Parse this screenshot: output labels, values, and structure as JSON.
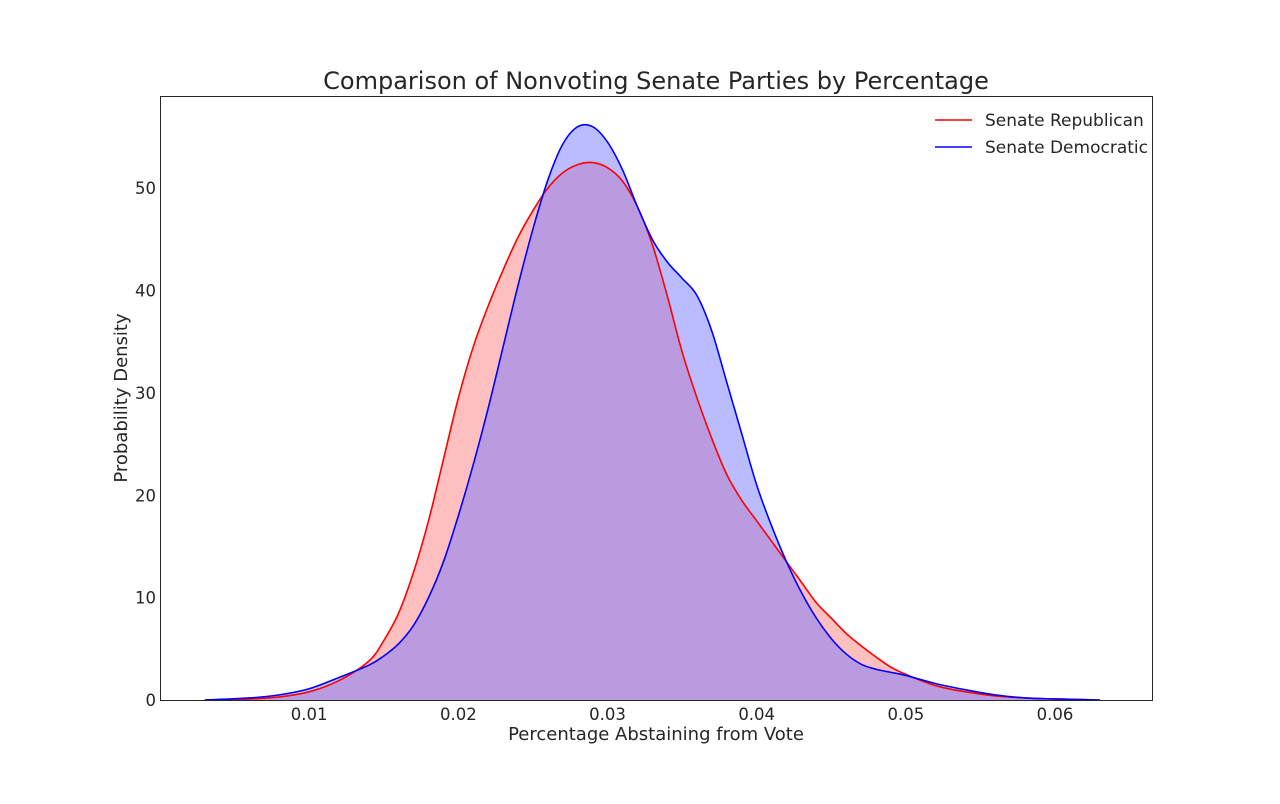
{
  "chart_data": {
    "type": "area",
    "title": "Comparison of Nonvoting Senate Parties by Percentage",
    "xlabel": "Percentage Abstaining from Vote",
    "ylabel": "Probability Density",
    "xlim": [
      0.0,
      0.0665
    ],
    "ylim": [
      0,
      59
    ],
    "xticks": [
      0.01,
      0.02,
      0.03,
      0.04,
      0.05,
      0.06
    ],
    "xtick_labels": [
      "0.01",
      "0.02",
      "0.03",
      "0.04",
      "0.05",
      "0.06"
    ],
    "yticks": [
      0,
      10,
      20,
      30,
      40,
      50
    ],
    "ytick_labels": [
      "0",
      "10",
      "20",
      "30",
      "40",
      "50"
    ],
    "grid": false,
    "legend_position": "top-right",
    "series": [
      {
        "name": "Senate Republican",
        "color": "#ff0000",
        "fill": "#ff8080",
        "fill_opacity": 0.5,
        "x": [
          0.003,
          0.006,
          0.008,
          0.01,
          0.012,
          0.014,
          0.015,
          0.016,
          0.017,
          0.018,
          0.019,
          0.02,
          0.021,
          0.022,
          0.023,
          0.024,
          0.025,
          0.026,
          0.027,
          0.028,
          0.029,
          0.03,
          0.031,
          0.032,
          0.033,
          0.034,
          0.035,
          0.036,
          0.037,
          0.038,
          0.039,
          0.04,
          0.041,
          0.042,
          0.043,
          0.044,
          0.045,
          0.046,
          0.047,
          0.048,
          0.049,
          0.05,
          0.052,
          0.054,
          0.056,
          0.058,
          0.06,
          0.063
        ],
        "y": [
          0,
          0.1,
          0.3,
          0.8,
          1.9,
          3.8,
          5.8,
          8.5,
          12.5,
          17.5,
          23.5,
          29.5,
          34.5,
          38.5,
          42.0,
          45.2,
          47.8,
          50.0,
          51.5,
          52.3,
          52.5,
          52.0,
          50.7,
          48.2,
          44.5,
          39.5,
          34.0,
          29.5,
          25.5,
          22.0,
          19.5,
          17.5,
          15.5,
          13.5,
          11.5,
          9.5,
          8.0,
          6.5,
          5.3,
          4.2,
          3.2,
          2.5,
          1.4,
          0.8,
          0.4,
          0.2,
          0.1,
          0
        ]
      },
      {
        "name": "Senate Democratic",
        "color": "#0000ff",
        "fill": "#7878ff",
        "fill_opacity": 0.5,
        "x": [
          0.003,
          0.006,
          0.008,
          0.01,
          0.012,
          0.014,
          0.015,
          0.016,
          0.017,
          0.018,
          0.019,
          0.02,
          0.021,
          0.022,
          0.023,
          0.024,
          0.025,
          0.026,
          0.027,
          0.028,
          0.029,
          0.03,
          0.031,
          0.032,
          0.033,
          0.034,
          0.035,
          0.036,
          0.037,
          0.038,
          0.039,
          0.04,
          0.041,
          0.042,
          0.043,
          0.044,
          0.045,
          0.046,
          0.047,
          0.048,
          0.049,
          0.05,
          0.052,
          0.054,
          0.056,
          0.058,
          0.06,
          0.063
        ],
        "y": [
          0,
          0.2,
          0.5,
          1.1,
          2.2,
          3.4,
          4.3,
          5.5,
          7.3,
          10.0,
          13.5,
          18.0,
          23.0,
          28.5,
          34.5,
          40.5,
          46.0,
          50.8,
          54.3,
          56.0,
          56.0,
          54.5,
          51.8,
          48.2,
          45.0,
          42.8,
          41.2,
          39.5,
          36.0,
          31.0,
          26.0,
          21.0,
          17.0,
          13.5,
          10.5,
          8.0,
          6.0,
          4.5,
          3.5,
          3.0,
          2.7,
          2.4,
          1.6,
          1.0,
          0.5,
          0.2,
          0.1,
          0
        ]
      }
    ]
  }
}
